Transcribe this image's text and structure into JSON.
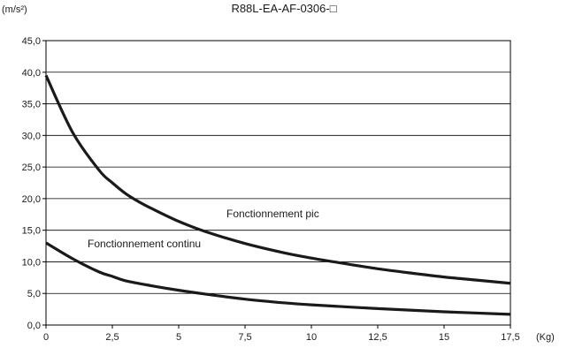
{
  "chart_data": {
    "type": "line",
    "title": "R88L-EA-AF-0306-□",
    "ylabel": "(m/s²)",
    "xlabel": "(Kg)",
    "xlim": [
      0,
      17.5
    ],
    "ylim": [
      0,
      45
    ],
    "grid": "horizontal",
    "x_ticks": [
      "0",
      "2,5",
      "5",
      "7,5",
      "10",
      "12,5",
      "15",
      "17,5"
    ],
    "y_ticks": [
      "0,0",
      "5,0",
      "10,0",
      "15,0",
      "20,0",
      "25,0",
      "30,0",
      "35,0",
      "40,0",
      "45,0"
    ],
    "series": [
      {
        "name": "Fonctionnement pic",
        "x": [
          0,
          1,
          2,
          2.5,
          3,
          3.5,
          4,
          5,
          6,
          7.5,
          9,
          10,
          11,
          12.5,
          14,
          15,
          16,
          17.5
        ],
        "y": [
          39.5,
          30.5,
          24.5,
          22.5,
          20.8,
          19.5,
          18.4,
          16.4,
          14.8,
          12.9,
          11.4,
          10.6,
          9.9,
          8.9,
          8.1,
          7.6,
          7.2,
          6.6
        ]
      },
      {
        "name": "Fonctionnement continu",
        "x": [
          0,
          1,
          2,
          2.5,
          3,
          4,
          5,
          6,
          7.5,
          9,
          10,
          12.5,
          15,
          17.5
        ],
        "y": [
          13.0,
          10.5,
          8.4,
          7.7,
          7.0,
          6.2,
          5.5,
          4.9,
          4.1,
          3.5,
          3.2,
          2.6,
          2.1,
          1.7
        ]
      }
    ]
  }
}
